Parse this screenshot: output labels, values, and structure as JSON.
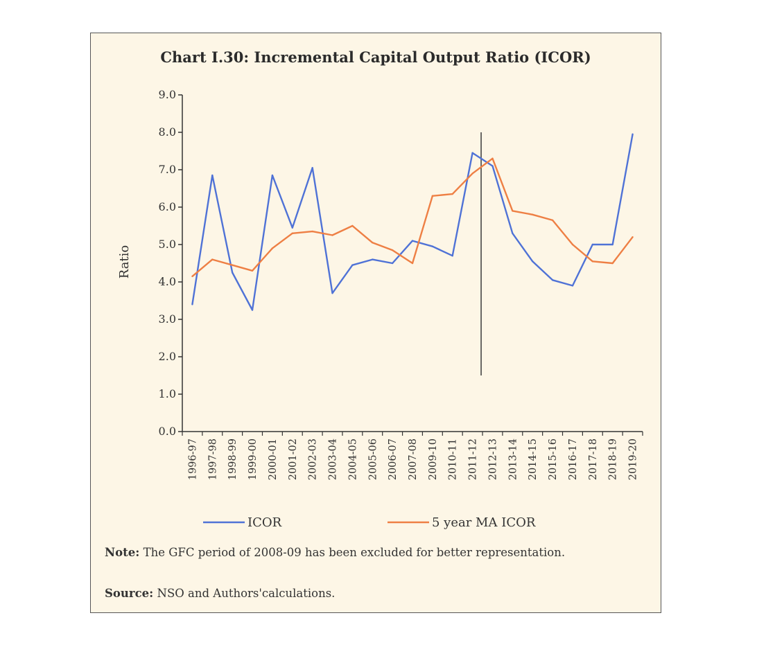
{
  "note": {
    "label": "Note:",
    "text": "The GFC period of 2008-09 has been excluded for better representation."
  },
  "source": {
    "label": "Source:",
    "text": "NSO and Authors'calculations."
  },
  "chart_data": {
    "type": "line",
    "title": "Chart I.30: Incremental Capital Output Ratio (ICOR)",
    "xlabel": "",
    "ylabel": "Ratio",
    "ylim": [
      0,
      9
    ],
    "yticks": [
      "0.0",
      "1.0",
      "2.0",
      "3.0",
      "4.0",
      "5.0",
      "6.0",
      "7.0",
      "8.0",
      "9.0"
    ],
    "categories": [
      "1996-97",
      "1997-98",
      "1998-99",
      "1999-00",
      "2000-01",
      "2001-02",
      "2002-03",
      "2003-04",
      "2004-05",
      "2005-06",
      "2006-07",
      "2007-08",
      "2009-10",
      "2010-11",
      "2011-12",
      "2012-13",
      "2013-14",
      "2014-15",
      "2015-16",
      "2016-17",
      "2017-18",
      "2018-19",
      "2019-20"
    ],
    "series": [
      {
        "name": "ICOR",
        "color": "#4f72d6",
        "values": [
          3.4,
          6.85,
          4.25,
          3.25,
          6.85,
          5.45,
          7.05,
          3.7,
          4.45,
          4.6,
          4.5,
          5.1,
          4.95,
          4.7,
          7.45,
          7.1,
          5.3,
          4.55,
          4.05,
          3.9,
          5.0,
          5.0,
          7.95
        ]
      },
      {
        "name": "5 year MA ICOR",
        "color": "#ee7f44",
        "values": [
          4.15,
          4.6,
          4.45,
          4.3,
          4.9,
          5.3,
          5.35,
          5.25,
          5.5,
          5.05,
          4.85,
          4.5,
          6.3,
          6.35,
          6.9,
          7.3,
          5.9,
          5.8,
          5.65,
          5.0,
          4.55,
          4.5,
          5.2
        ]
      }
    ],
    "legend": "bottom",
    "grid": false,
    "annotations": [
      {
        "type": "vertical-line",
        "position": "between 2011-12 and 2012-13",
        "ymin": 1.5,
        "ymax": 8.0,
        "color": "#444444"
      }
    ]
  }
}
